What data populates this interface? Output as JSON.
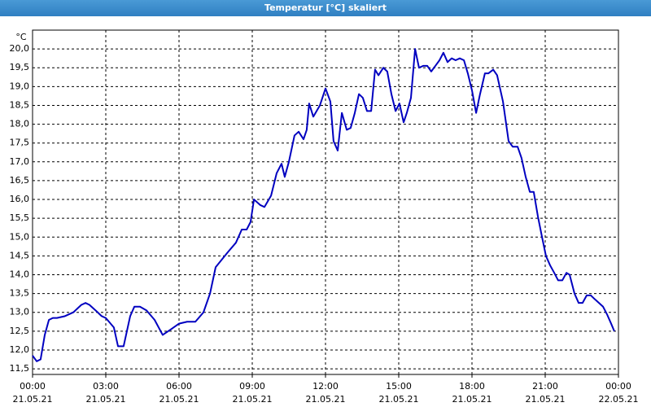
{
  "window_title": "Temperatur [°C] skaliert",
  "chart_data": {
    "type": "line",
    "y_unit": "°C",
    "xlim": [
      0,
      24
    ],
    "ylim": [
      11.35,
      20.5
    ],
    "xticks": [
      {
        "value": 0,
        "label": [
          "00:00",
          "21.05.21"
        ]
      },
      {
        "value": 3,
        "label": [
          "03:00",
          "21.05.21"
        ]
      },
      {
        "value": 6,
        "label": [
          "06:00",
          "21.05.21"
        ]
      },
      {
        "value": 9,
        "label": [
          "09:00",
          "21.05.21"
        ]
      },
      {
        "value": 12,
        "label": [
          "12:00",
          "21.05.21"
        ]
      },
      {
        "value": 15,
        "label": [
          "15:00",
          "21.05.21"
        ]
      },
      {
        "value": 18,
        "label": [
          "18:00",
          "21.05.21"
        ]
      },
      {
        "value": 21,
        "label": [
          "21:00",
          "21.05.21"
        ]
      },
      {
        "value": 24,
        "label": [
          "00:00",
          "22.05.21"
        ]
      }
    ],
    "yticks": [
      {
        "value": 11.5,
        "label": "11,5"
      },
      {
        "value": 12,
        "label": "12,0"
      },
      {
        "value": 12.5,
        "label": "12,5"
      },
      {
        "value": 13,
        "label": "13,0"
      },
      {
        "value": 13.5,
        "label": "13,5"
      },
      {
        "value": 14,
        "label": "14,0"
      },
      {
        "value": 14.5,
        "label": "14,5"
      },
      {
        "value": 15,
        "label": "15,0"
      },
      {
        "value": 15.5,
        "label": "15,5"
      },
      {
        "value": 16,
        "label": "16,0"
      },
      {
        "value": 16.5,
        "label": "16,5"
      },
      {
        "value": 17,
        "label": "17,0"
      },
      {
        "value": 17.5,
        "label": "17,5"
      },
      {
        "value": 18,
        "label": "18,0"
      },
      {
        "value": 18.5,
        "label": "18,5"
      },
      {
        "value": 19,
        "label": "19,0"
      },
      {
        "value": 19.5,
        "label": "19,5"
      },
      {
        "value": 20,
        "label": "20,0"
      }
    ],
    "grid": true,
    "x": [
      0,
      0.17,
      0.33,
      0.5,
      0.67,
      0.83,
      1,
      1.33,
      1.67,
      2,
      2.17,
      2.33,
      2.5,
      2.67,
      2.83,
      3,
      3.33,
      3.5,
      3.73,
      4,
      4.17,
      4.4,
      4.67,
      5,
      5.33,
      5.67,
      6,
      6.33,
      6.67,
      7,
      7.27,
      7.5,
      8,
      8.33,
      8.57,
      8.77,
      8.93,
      9.07,
      9.33,
      9.5,
      9.77,
      10,
      10.2,
      10.33,
      10.5,
      10.73,
      10.9,
      11.1,
      11.23,
      11.33,
      11.5,
      11.77,
      12,
      12.2,
      12.33,
      12.5,
      12.67,
      12.87,
      13.03,
      13.2,
      13.37,
      13.53,
      13.7,
      13.87,
      14.03,
      14.17,
      14.37,
      14.53,
      14.7,
      14.87,
      15.03,
      15.2,
      15.33,
      15.5,
      15.67,
      15.83,
      16,
      16.17,
      16.33,
      16.5,
      16.67,
      16.83,
      17,
      17.17,
      17.33,
      17.5,
      17.67,
      17.83,
      18,
      18.17,
      18.33,
      18.53,
      18.67,
      18.87,
      19.03,
      19.27,
      19.5,
      19.67,
      19.87,
      20.03,
      20.2,
      20.37,
      20.53,
      20.7,
      20.87,
      21.03,
      21.2,
      21.37,
      21.53,
      21.7,
      21.87,
      22,
      22.2,
      22.37,
      22.53,
      22.7,
      22.87,
      23.03,
      23.2,
      23.37,
      23.53,
      23.7,
      23.83
    ],
    "series": [
      {
        "color": "#0000c0",
        "values": [
          11.85,
          11.7,
          11.75,
          12.4,
          12.8,
          12.85,
          12.85,
          12.9,
          13.0,
          13.2,
          13.25,
          13.2,
          13.1,
          13.0,
          12.9,
          12.85,
          12.6,
          12.1,
          12.1,
          12.9,
          13.15,
          13.15,
          13.05,
          12.8,
          12.4,
          12.55,
          12.7,
          12.75,
          12.75,
          13.0,
          13.5,
          14.2,
          14.6,
          14.85,
          15.2,
          15.2,
          15.4,
          16.0,
          15.85,
          15.8,
          16.1,
          16.7,
          16.95,
          16.6,
          17.0,
          17.7,
          17.8,
          17.6,
          17.85,
          18.55,
          18.2,
          18.5,
          18.95,
          18.6,
          17.55,
          17.3,
          18.3,
          17.85,
          17.9,
          18.3,
          18.8,
          18.7,
          18.35,
          18.35,
          19.45,
          19.3,
          19.5,
          19.4,
          18.8,
          18.35,
          18.55,
          18.05,
          18.3,
          18.7,
          20.0,
          19.5,
          19.55,
          19.55,
          19.4,
          19.55,
          19.7,
          19.9,
          19.65,
          19.75,
          19.7,
          19.75,
          19.7,
          19.35,
          18.9,
          18.3,
          18.8,
          19.35,
          19.35,
          19.45,
          19.3,
          18.6,
          17.55,
          17.4,
          17.4,
          17.1,
          16.6,
          16.2,
          16.2,
          15.55,
          15.0,
          14.5,
          14.25,
          14.05,
          13.85,
          13.85,
          14.05,
          14.0,
          13.5,
          13.25,
          13.25,
          13.45,
          13.45,
          13.35,
          13.25,
          13.15,
          12.95,
          12.7,
          12.5
        ]
      }
    ]
  }
}
